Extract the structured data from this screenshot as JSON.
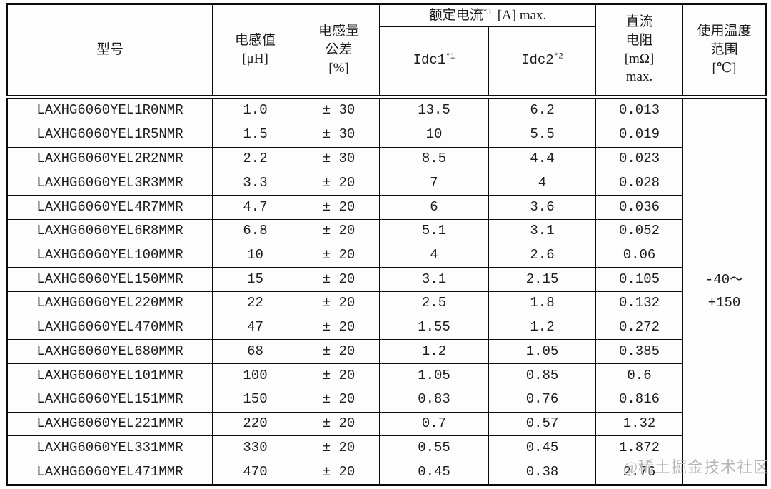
{
  "page": {
    "background": "#fdfdfd",
    "border_color": "#0a0a0a",
    "text_color": "#1c1c1c",
    "watermark_color": "#b5b5b5"
  },
  "watermark": "@稀土掘金技术社区",
  "table": {
    "headers": {
      "model": "型号",
      "inductance": "电感值\n[μH]",
      "tolerance": "电感量\n公差\n[%]",
      "rated_current": {
        "label": "额定电流",
        "sup": "*3",
        "unit": "[A] max."
      },
      "idc1": {
        "label": "Idc1",
        "sup": "*1"
      },
      "idc2": {
        "label": "Idc2",
        "sup": "*2"
      },
      "dc_resistance": "直流\n电阻\n[mΩ]\nmax.",
      "temp_range": "使用温度\n范围\n[℃]"
    },
    "temp_range_value": "-40～\n+150",
    "rows": [
      [
        "LAXHG6060YEL1R0NMR",
        "1.0",
        "± 30",
        "13.5",
        "6.2",
        "0.013"
      ],
      [
        "LAXHG6060YEL1R5NMR",
        "1.5",
        "± 30",
        "10",
        "5.5",
        "0.019"
      ],
      [
        "LAXHG6060YEL2R2NMR",
        "2.2",
        "± 30",
        "8.5",
        "4.4",
        "0.023"
      ],
      [
        "LAXHG6060YEL3R3MMR",
        "3.3",
        "± 20",
        "7",
        "4",
        "0.028"
      ],
      [
        "LAXHG6060YEL4R7MMR",
        "4.7",
        "± 20",
        "6",
        "3.6",
        "0.036"
      ],
      [
        "LAXHG6060YEL6R8MMR",
        "6.8",
        "± 20",
        "5.1",
        "3.1",
        "0.052"
      ],
      [
        "LAXHG6060YEL100MMR",
        "10",
        "± 20",
        "4",
        "2.6",
        "0.06"
      ],
      [
        "LAXHG6060YEL150MMR",
        "15",
        "± 20",
        "3.1",
        "2.15",
        "0.105"
      ],
      [
        "LAXHG6060YEL220MMR",
        "22",
        "± 20",
        "2.5",
        "1.8",
        "0.132"
      ],
      [
        "LAXHG6060YEL470MMR",
        "47",
        "± 20",
        "1.55",
        "1.2",
        "0.272"
      ],
      [
        "LAXHG6060YEL680MMR",
        "68",
        "± 20",
        "1.2",
        "1.05",
        "0.385"
      ],
      [
        "LAXHG6060YEL101MMR",
        "100",
        "± 20",
        "1.05",
        "0.85",
        "0.6"
      ],
      [
        "LAXHG6060YEL151MMR",
        "150",
        "± 20",
        "0.83",
        "0.76",
        "0.816"
      ],
      [
        "LAXHG6060YEL221MMR",
        "220",
        "± 20",
        "0.7",
        "0.57",
        "1.32"
      ],
      [
        "LAXHG6060YEL331MMR",
        "330",
        "± 20",
        "0.55",
        "0.45",
        "1.872"
      ],
      [
        "LAXHG6060YEL471MMR",
        "470",
        "± 20",
        "0.45",
        "0.38",
        "2.76"
      ]
    ]
  }
}
